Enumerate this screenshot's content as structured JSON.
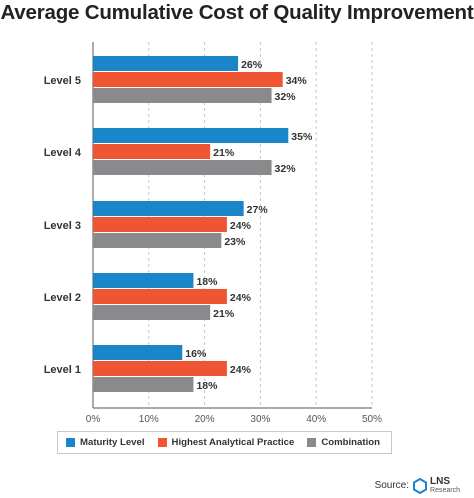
{
  "chart_data": {
    "type": "bar",
    "orientation": "horizontal",
    "title": "Average Cumulative Cost of Quality Improvement",
    "categories": [
      "Level 5",
      "Level 4",
      "Level 3",
      "Level 2",
      "Level 1"
    ],
    "series": [
      {
        "name": "Maturity Level",
        "color": "#1a86c7",
        "values": [
          26,
          35,
          27,
          18,
          16
        ]
      },
      {
        "name": "Highest Analytical Practice",
        "color": "#ef5532",
        "values": [
          34,
          21,
          24,
          24,
          24
        ]
      },
      {
        "name": "Combination",
        "color": "#8a8a8c",
        "values": [
          32,
          32,
          23,
          21,
          18
        ]
      }
    ],
    "data_label_suffix": "%",
    "xlim": [
      0,
      50
    ],
    "xticks": [
      0,
      10,
      20,
      30,
      40,
      50
    ],
    "xtick_labels": [
      "0%",
      "10%",
      "20%",
      "30%",
      "40%",
      "50%"
    ],
    "grid": "vertical-dashed",
    "legend_position": "bottom"
  },
  "source": {
    "label": "Source:",
    "logo_name": "LNS",
    "logo_sub": "Research"
  }
}
